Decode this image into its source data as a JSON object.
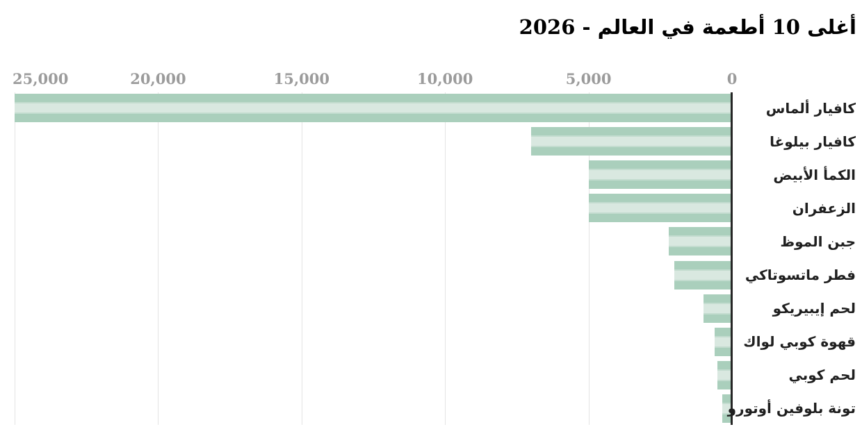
{
  "title": "أغلى 10 أطعمة في العالم - 2026",
  "chart_data": {
    "type": "bar",
    "orientation": "horizontal_rtl",
    "title": "أغلى 10 أطعمة في العالم - 2026",
    "categories": [
      "كافيار ألماس",
      "كافيار بيلوغا",
      "الكمأ الأبيض",
      "الزعفران",
      "جبن الموظ",
      "فطر ماتسوتاكي",
      "لحم إيبيريكو",
      "قهوة كوبي لواك",
      "لحم كوبي",
      "تونة بلوفين أوتورو"
    ],
    "values": [
      25000,
      7000,
      5000,
      5000,
      2200,
      2000,
      1000,
      600,
      500,
      350
    ],
    "xlim": [
      0,
      25000
    ],
    "x_ticks": [
      "25,000",
      "20,000",
      "15,000",
      "10,000",
      "5,000",
      "0"
    ],
    "x_tick_values": [
      25000,
      20000,
      15000,
      10000,
      5000,
      0
    ],
    "grid": true,
    "legend": false,
    "axis_side": "right",
    "colors": {
      "background": "#ffffff",
      "bar_stripe_dark": "#aacfbc",
      "bar_stripe_mid": "#c3dccf",
      "bar_stripe_light": "#d9e8e0",
      "axis_line": "#262626",
      "gridline": "#e3e3e3",
      "tick_text": "#9b9b9b",
      "label_text": "#1f1f1f",
      "title_text": "#000000"
    }
  }
}
